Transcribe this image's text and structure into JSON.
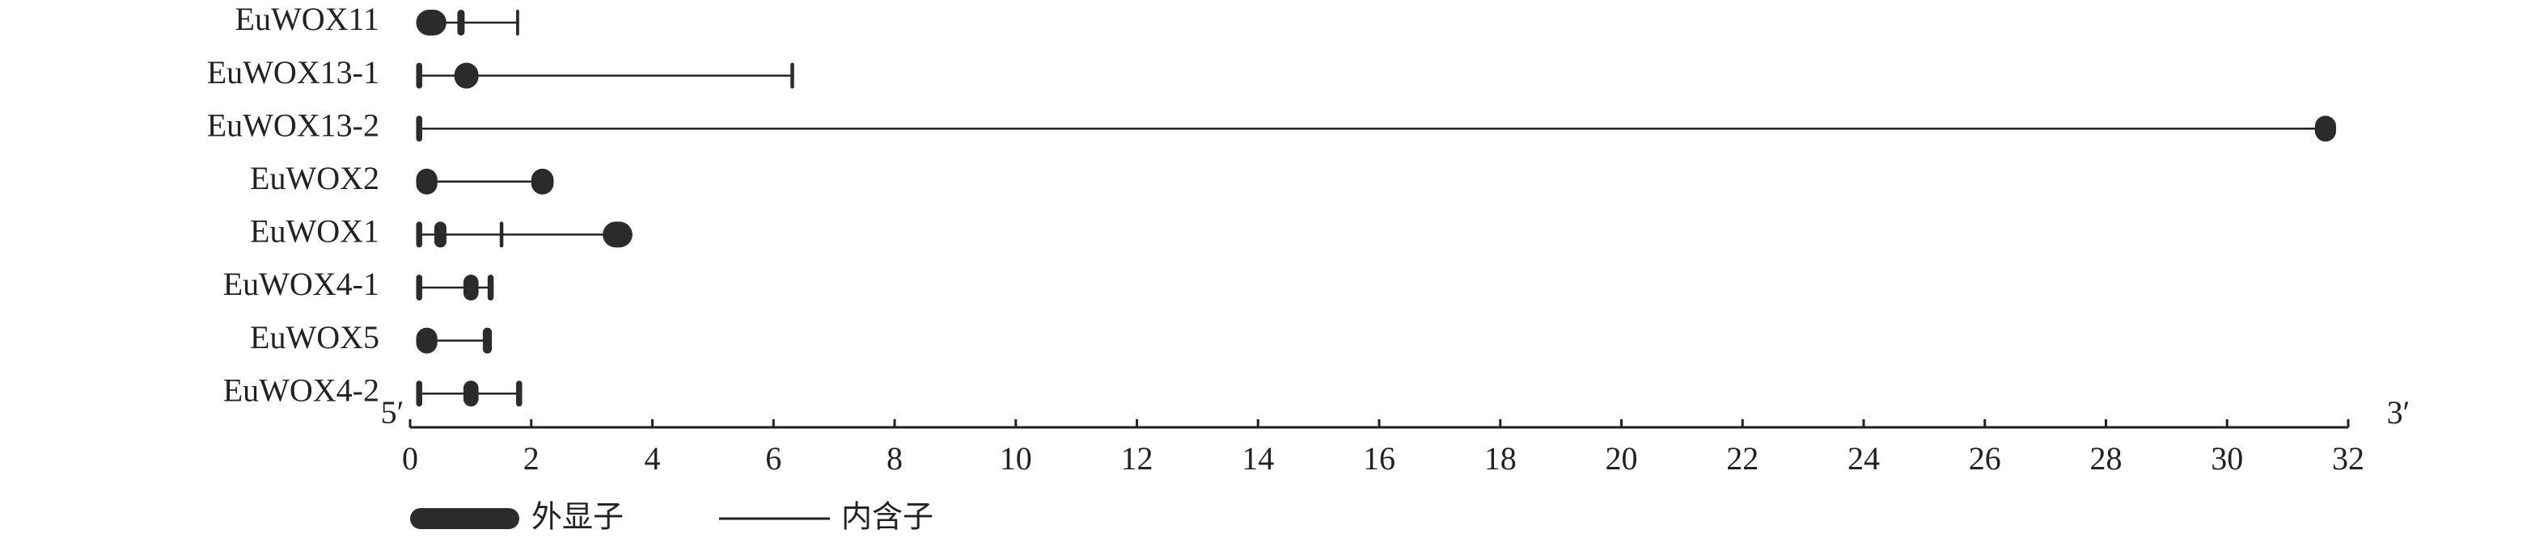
{
  "chart_data": {
    "type": "gene-structure",
    "color": "#2b2b2b",
    "genes": [
      {
        "name": "EuWOX11",
        "exons": [
          [
            0.1,
            0.6
          ],
          [
            0.78,
            0.9
          ],
          [
            1.75,
            1.8
          ]
        ]
      },
      {
        "name": "EuWOX13-1",
        "exons": [
          [
            0.1,
            0.2
          ],
          [
            0.73,
            1.13
          ],
          [
            6.28,
            6.34
          ]
        ]
      },
      {
        "name": "EuWOX13-2",
        "exons": [
          [
            0.1,
            0.2
          ],
          [
            31.45,
            31.8
          ]
        ]
      },
      {
        "name": "EuWOX2",
        "exons": [
          [
            0.1,
            0.45
          ],
          [
            2.0,
            2.37
          ]
        ]
      },
      {
        "name": "EuWOX1",
        "exons": [
          [
            0.1,
            0.2
          ],
          [
            0.4,
            0.6
          ],
          [
            1.48,
            1.54
          ],
          [
            3.18,
            3.67
          ]
        ]
      },
      {
        "name": "EuWOX4-1",
        "exons": [
          [
            0.1,
            0.2
          ],
          [
            0.88,
            1.13
          ],
          [
            1.28,
            1.38
          ]
        ]
      },
      {
        "name": "EuWOX5",
        "exons": [
          [
            0.1,
            0.45
          ],
          [
            1.2,
            1.35
          ]
        ]
      },
      {
        "name": "EuWOX4-2",
        "exons": [
          [
            0.1,
            0.2
          ],
          [
            0.88,
            1.13
          ],
          [
            1.75,
            1.85
          ]
        ]
      }
    ],
    "xlim": [
      0,
      32
    ],
    "xticks": [
      0,
      2,
      4,
      6,
      8,
      10,
      12,
      14,
      16,
      18,
      20,
      22,
      24,
      26,
      28,
      30,
      32
    ],
    "five_prime": "5′",
    "three_prime": "3′",
    "legend": {
      "exon": "外显子",
      "intron": "内含子"
    }
  }
}
